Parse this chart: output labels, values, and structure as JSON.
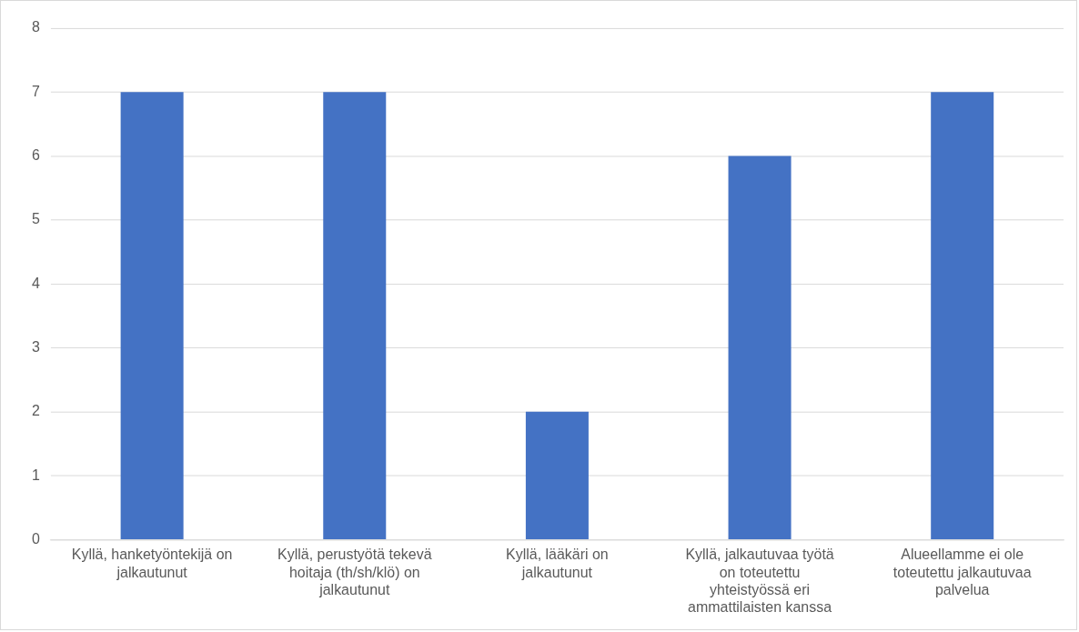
{
  "chart_data": {
    "type": "bar",
    "categories": [
      "Kyllä, hanketyöntekijä on jalkautunut",
      "Kyllä, perustyötä tekevä hoitaja (th/sh/klö) on jalkautunut",
      "Kyllä, lääkäri on jalkautunut",
      "Kyllä, jalkautuvaa työtä on toteutettu yhteistyössä eri ammattilaisten kanssa",
      "Alueellamme ei ole toteutettu jalkautuvaa palvelua"
    ],
    "values": [
      7,
      7,
      2,
      6,
      7
    ],
    "color": "#4472c4",
    "ylim": [
      0,
      8
    ],
    "yticks": [
      0,
      1,
      2,
      3,
      4,
      5,
      6,
      7,
      8
    ],
    "grid": "y"
  }
}
